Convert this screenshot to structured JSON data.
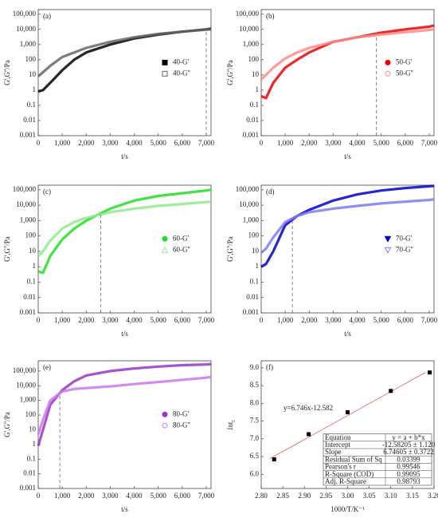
{
  "chart_data": [
    {
      "type": "line",
      "panel_label": "(a)",
      "xlabel": "t/s",
      "ylabel": "G',G''/Pa",
      "yscale": "log",
      "xlim": [
        0,
        7200
      ],
      "ylim": [
        0.001,
        200000
      ],
      "xticks": [
        0,
        {
          "value": 1000,
          "label": "1,000"
        },
        {
          "value": 2000,
          "label": "2,000"
        },
        {
          "value": 3000,
          "label": "3,000"
        },
        {
          "value": 4000,
          "label": "4,000"
        },
        {
          "value": 5000,
          "label": "5,000"
        },
        {
          "value": 6000,
          "label": "6,000"
        },
        {
          "value": 7000,
          "label": "7,000"
        }
      ],
      "yticks": [
        0.001,
        0.01,
        0.1,
        1,
        10,
        100,
        {
          "value": 1000,
          "label": "1,000"
        },
        {
          "value": 10000,
          "label": "10,000"
        },
        {
          "value": 100000,
          "label": "100,000"
        }
      ],
      "legend": "right",
      "vline": 7000,
      "x": [
        0,
        200,
        500,
        1000,
        1500,
        2000,
        3000,
        4000,
        5000,
        6000,
        7000,
        7200
      ],
      "series": [
        {
          "name": "40-G'",
          "color": "#000000",
          "marker": "square",
          "values": [
            0.8,
            1,
            3,
            20,
            100,
            300,
            1000,
            2500,
            4500,
            7000,
            10000,
            11000
          ]
        },
        {
          "name": "40-G''",
          "color": "#666666",
          "marker": "square-open",
          "values": [
            8,
            15,
            40,
            150,
            300,
            600,
            1500,
            3000,
            5000,
            7000,
            9500,
            10000
          ]
        }
      ]
    },
    {
      "type": "line",
      "panel_label": "(b)",
      "xlabel": "t/s",
      "ylabel": "G',G''/Pa",
      "yscale": "log",
      "xlim": [
        0,
        7200
      ],
      "ylim": [
        0.001,
        200000
      ],
      "xticks": [
        0,
        {
          "value": 1000,
          "label": "1,000"
        },
        {
          "value": 2000,
          "label": "2,000"
        },
        {
          "value": 3000,
          "label": "3,000"
        },
        {
          "value": 4000,
          "label": "4,000"
        },
        {
          "value": 5000,
          "label": "5,000"
        },
        {
          "value": 6000,
          "label": "6,000"
        },
        {
          "value": 7000,
          "label": "7,000"
        }
      ],
      "yticks": [
        0.001,
        0.01,
        0.1,
        1,
        10,
        100,
        {
          "value": 1000,
          "label": "1,000"
        },
        {
          "value": 10000,
          "label": "10,000"
        },
        {
          "value": 100000,
          "label": "100,000"
        }
      ],
      "legend": "right",
      "vline": 4800,
      "x": [
        0,
        200,
        500,
        1000,
        1500,
        2000,
        3000,
        4000,
        5000,
        6000,
        7000,
        7200
      ],
      "series": [
        {
          "name": "50-G'",
          "color": "#ee0000",
          "marker": "circle",
          "values": [
            0.4,
            0.3,
            3,
            30,
            100,
            300,
            1500,
            3000,
            6000,
            10000,
            15000,
            18000
          ]
        },
        {
          "name": "50-G''",
          "color": "#ff8a8a",
          "marker": "circle-open",
          "values": [
            5,
            10,
            30,
            120,
            300,
            600,
            1500,
            3000,
            4500,
            6500,
            9000,
            10000
          ]
        }
      ]
    },
    {
      "type": "line",
      "panel_label": "(c)",
      "xlabel": "t/s",
      "ylabel": "G',G''/Pa",
      "yscale": "log",
      "xlim": [
        0,
        7200
      ],
      "ylim": [
        0.001,
        200000
      ],
      "xticks": [
        0,
        {
          "value": 1000,
          "label": "1,000"
        },
        {
          "value": 2000,
          "label": "2,000"
        },
        {
          "value": 3000,
          "label": "3,000"
        },
        {
          "value": 4000,
          "label": "4,000"
        },
        {
          "value": 5000,
          "label": "5,000"
        },
        {
          "value": 6000,
          "label": "6,000"
        },
        {
          "value": 7000,
          "label": "7,000"
        }
      ],
      "yticks": [
        0.001,
        0.01,
        0.1,
        1,
        10,
        100,
        {
          "value": 1000,
          "label": "1,000"
        },
        {
          "value": 10000,
          "label": "10,000"
        },
        {
          "value": 100000,
          "label": "100,000"
        }
      ],
      "legend": "right",
      "vline": 2600,
      "x": [
        0,
        200,
        500,
        1000,
        1500,
        2000,
        3000,
        4000,
        5000,
        6000,
        7000,
        7200
      ],
      "series": [
        {
          "name": "60-G'",
          "color": "#22dd22",
          "marker": "circle",
          "values": [
            0.5,
            0.4,
            5,
            60,
            300,
            1000,
            6000,
            20000,
            40000,
            60000,
            90000,
            100000
          ]
        },
        {
          "name": "60-G''",
          "color": "#8fea8f",
          "marker": "triangle-open",
          "values": [
            5,
            10,
            50,
            300,
            800,
            1500,
            3500,
            6000,
            9000,
            12000,
            16000,
            17000
          ]
        }
      ]
    },
    {
      "type": "line",
      "panel_label": "(d)",
      "xlabel": "t/s",
      "ylabel": "G',G''/Pa",
      "yscale": "log",
      "xlim": [
        0,
        7200
      ],
      "ylim": [
        0.001,
        200000
      ],
      "xticks": [
        0,
        {
          "value": 1000,
          "label": "1,000"
        },
        {
          "value": 2000,
          "label": "2,000"
        },
        {
          "value": 3000,
          "label": "3,000"
        },
        {
          "value": 4000,
          "label": "4,000"
        },
        {
          "value": 5000,
          "label": "5,000"
        },
        {
          "value": 6000,
          "label": "6,000"
        },
        {
          "value": 7000,
          "label": "7,000"
        }
      ],
      "yticks": [
        0.001,
        0.01,
        0.1,
        1,
        10,
        100,
        {
          "value": 1000,
          "label": "1,000"
        },
        {
          "value": 10000,
          "label": "10,000"
        },
        {
          "value": 100000,
          "label": "100,000"
        }
      ],
      "legend": "right",
      "vline": 1300,
      "x": [
        0,
        200,
        500,
        1000,
        1500,
        2000,
        3000,
        4000,
        5000,
        6000,
        7000,
        7200
      ],
      "series": [
        {
          "name": "70-G'",
          "color": "#0000cc",
          "marker": "triangle-down",
          "values": [
            1,
            1.5,
            10,
            500,
            2000,
            5000,
            20000,
            50000,
            90000,
            130000,
            170000,
            180000
          ]
        },
        {
          "name": "70-G''",
          "color": "#7b7bee",
          "marker": "triangle-down-open",
          "values": [
            8,
            15,
            80,
            800,
            2000,
            3500,
            6000,
            9000,
            13000,
            17000,
            22000,
            24000
          ]
        }
      ]
    },
    {
      "type": "line",
      "panel_label": "(e)",
      "xlabel": "t/s",
      "ylabel": "G',G''/Pa",
      "yscale": "log",
      "xlim": [
        0,
        7200
      ],
      "ylim": [
        0.001,
        500000
      ],
      "xticks": [
        0,
        {
          "value": 1000,
          "label": "1,000"
        },
        {
          "value": 2000,
          "label": "2,000"
        },
        {
          "value": 3000,
          "label": "3,000"
        },
        {
          "value": 4000,
          "label": "4,000"
        },
        {
          "value": 5000,
          "label": "5,000"
        },
        {
          "value": 6000,
          "label": "6,000"
        },
        {
          "value": 7000,
          "label": "7,000"
        }
      ],
      "yticks": [
        0.001,
        0.01,
        0.1,
        1,
        10,
        100,
        {
          "value": 1000,
          "label": "1,000"
        },
        {
          "value": 10000,
          "label": "10,000"
        },
        {
          "value": 100000,
          "label": "100,000"
        }
      ],
      "legend": "right",
      "vline": 900,
      "x": [
        0,
        200,
        500,
        1000,
        1500,
        2000,
        3000,
        4000,
        5000,
        6000,
        7000,
        7200
      ],
      "series": [
        {
          "name": "80-G'",
          "color": "#9933cc",
          "marker": "circle",
          "values": [
            0.8,
            10,
            500,
            5000,
            20000,
            50000,
            100000,
            150000,
            200000,
            250000,
            280000,
            300000
          ]
        },
        {
          "name": "80-G''",
          "color": "#cc77ee",
          "marker": "circle-open",
          "values": [
            5,
            50,
            1000,
            4000,
            6000,
            7000,
            9000,
            13000,
            18000,
            25000,
            35000,
            40000
          ]
        }
      ]
    },
    {
      "type": "scatter",
      "panel_label": "(f)",
      "xlabel": "1000/T/K⁻¹",
      "ylabel": "lnt",
      "ylabel_subscript": "c",
      "xlim": [
        2.8,
        3.2
      ],
      "ylim": [
        5.6,
        9.2
      ],
      "xticks": [
        {
          "value": 2.8,
          "label": "2.80"
        },
        {
          "value": 2.85,
          "label": "2.85"
        },
        {
          "value": 2.9,
          "label": "2.90"
        },
        {
          "value": 2.95,
          "label": "2.95"
        },
        {
          "value": 3.0,
          "label": "3.00"
        },
        {
          "value": 3.05,
          "label": "3.05"
        },
        {
          "value": 3.1,
          "label": "3.10"
        },
        {
          "value": 3.15,
          "label": "3.15"
        },
        {
          "value": 3.2,
          "label": "3.20"
        }
      ],
      "yticks": [
        {
          "value": 6,
          "label": "6.0"
        },
        6.5,
        {
          "value": 7,
          "label": "7.0"
        },
        7.5,
        {
          "value": 8,
          "label": "8.0"
        },
        8.5,
        {
          "value": 9,
          "label": "9.0"
        }
      ],
      "x": [
        2.83,
        2.91,
        3.0,
        3.1,
        3.19
      ],
      "values": [
        6.42,
        7.13,
        7.75,
        8.35,
        8.87
      ],
      "color": "#000000",
      "fit": {
        "slope": 6.746,
        "intercept": -12.582,
        "color": "#e06060"
      },
      "annotation": "y=6.746x-12.582",
      "table": [
        [
          "Equation",
          "y = a + b*x"
        ],
        [
          "Intercept",
          "-12.58205 ± 1.120"
        ],
        [
          "Slope",
          "6.74605 ± 0.3722"
        ],
        [
          "Residual Sum of Sq",
          "0.03399"
        ],
        [
          "Pearson's r",
          "0.99546"
        ],
        [
          "R-Square (COD)",
          "0.99095"
        ],
        [
          "Adj. R-Square",
          "0.98793"
        ]
      ]
    }
  ]
}
